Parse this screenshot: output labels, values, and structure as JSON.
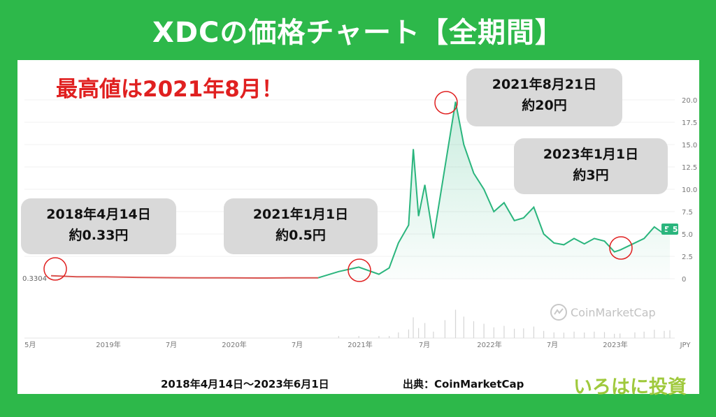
{
  "title": "XDCの価格チャート【全期間】",
  "headline": "最高値は2021年8月！",
  "annotations": [
    {
      "date": "2018年4月14日",
      "value": "約0.33円"
    },
    {
      "date": "2021年1月1日",
      "value": "約0.5円"
    },
    {
      "date": "2021年8月21日",
      "value": "約20円"
    },
    {
      "date": "2023年1月1日",
      "value": "約3円"
    }
  ],
  "footer": {
    "range": "2018年4月14日〜2023年6月1日",
    "source": "出典：CoinMarketCap"
  },
  "brand": "いろはに投資",
  "watermark": "CoinMarketCap",
  "colors": {
    "background": "#2db84a",
    "highlight": "#e02020",
    "line_before": "#d9534f",
    "line_after": "#2ab57d",
    "bubble": "#d9d9d9"
  },
  "chart_data": {
    "type": "line",
    "y_unit": "JPY",
    "ylim": [
      0,
      20
    ],
    "y_ticks": [
      "20.0",
      "17.5",
      "15.0",
      "12.5",
      "10.0",
      "7.5",
      "5.0",
      "2.5",
      "0"
    ],
    "x_tick_labels": [
      "5月",
      "2019年",
      "7月",
      "2020年",
      "7月",
      "2021年",
      "7月",
      "2022年",
      "7月",
      "2023年",
      "JPY"
    ],
    "start_value_label": "0.3304",
    "current_value_label": "5.5",
    "series": [
      {
        "segment": "before",
        "x": [
          "2018-04-14",
          "2018-07-01",
          "2018-10-01",
          "2019-01-01",
          "2019-04-01",
          "2019-07-01",
          "2019-10-01",
          "2020-01-01",
          "2020-04-01",
          "2020-07-01"
        ],
        "y": [
          0.33,
          0.22,
          0.2,
          0.15,
          0.12,
          0.1,
          0.09,
          0.08,
          0.09,
          0.1
        ]
      },
      {
        "segment": "after",
        "x": [
          "2020-07-01",
          "2020-09-01",
          "2020-11-01",
          "2021-01-01",
          "2021-02-01",
          "2021-03-01",
          "2021-04-01",
          "2021-04-15",
          "2021-05-01",
          "2021-05-20",
          "2021-06-15",
          "2021-07-20",
          "2021-08-21",
          "2021-09-15",
          "2021-10-15",
          "2021-11-15",
          "2021-12-15",
          "2022-01-15",
          "2022-02-15",
          "2022-03-15",
          "2022-04-15",
          "2022-05-15",
          "2022-06-15",
          "2022-07-15",
          "2022-08-15",
          "2022-09-15",
          "2022-10-15",
          "2022-11-15",
          "2022-12-15",
          "2023-01-01",
          "2023-02-15",
          "2023-03-15",
          "2023-04-15",
          "2023-05-15",
          "2023-06-01"
        ],
        "y": [
          0.1,
          0.8,
          1.3,
          0.5,
          1.2,
          4.0,
          6.0,
          14.5,
          7.0,
          10.5,
          4.5,
          12.5,
          19.8,
          15.0,
          11.8,
          10.0,
          7.5,
          8.5,
          6.5,
          6.8,
          8.0,
          5.0,
          4.0,
          3.8,
          4.5,
          3.9,
          4.5,
          4.2,
          3.0,
          3.2,
          4.0,
          4.5,
          5.8,
          5.0,
          5.5
        ]
      }
    ]
  }
}
